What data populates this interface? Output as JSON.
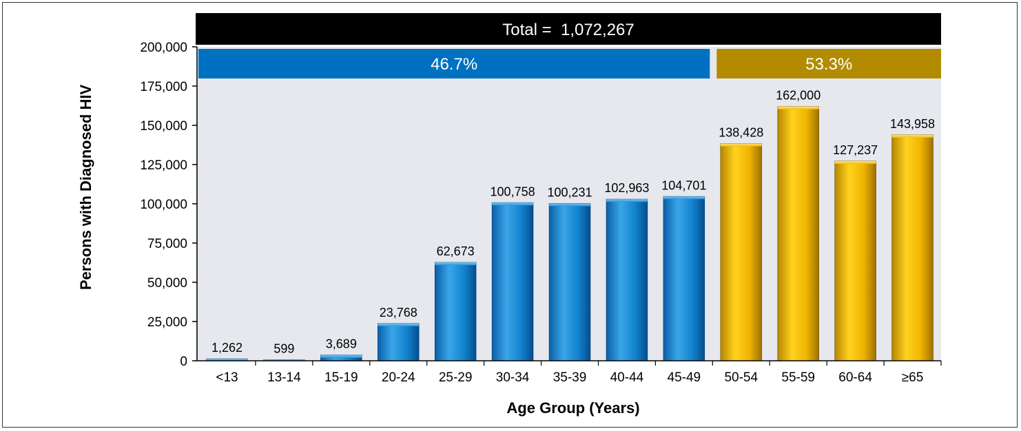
{
  "chart_data": {
    "type": "bar",
    "categories": [
      "<13",
      "13-14",
      "15-19",
      "20-24",
      "25-29",
      "30-34",
      "35-39",
      "40-44",
      "45-49",
      "50-54",
      "55-59",
      "60-64",
      "≥65"
    ],
    "values": [
      1262,
      599,
      3689,
      23768,
      62673,
      100758,
      100231,
      102963,
      104701,
      138428,
      162000,
      127237,
      143958
    ],
    "value_labels": [
      "1,262",
      "599",
      "3,689",
      "23,768",
      "62,673",
      "100,758",
      "100,231",
      "102,963",
      "104,701",
      "138,428",
      "162,000",
      "127,237",
      "143,958"
    ],
    "groups": [
      {
        "label": "46.7%",
        "first_index": 0,
        "last_index": 8,
        "color": "#0071c1"
      },
      {
        "label": "53.3%",
        "first_index": 9,
        "last_index": 12,
        "color": "#b38b00"
      }
    ],
    "title": "Total =  1,072,267",
    "xlabel": "Age Group (Years)",
    "ylabel": "Persons with Diagnosed HIV",
    "ylim": [
      0,
      200000
    ],
    "yticks": [
      0,
      25000,
      50000,
      75000,
      100000,
      125000,
      150000,
      175000,
      200000
    ],
    "ytick_labels": [
      "0",
      "25,000",
      "50,000",
      "75,000",
      "100,000",
      "125,000",
      "150,000",
      "175,000",
      "200,000"
    ],
    "grid": false,
    "colors": {
      "blue_bar": "#1a8fd8",
      "gold_bar": "#f0b400",
      "plot_background": "#e6e8ee",
      "title_banner": "#000000"
    }
  }
}
